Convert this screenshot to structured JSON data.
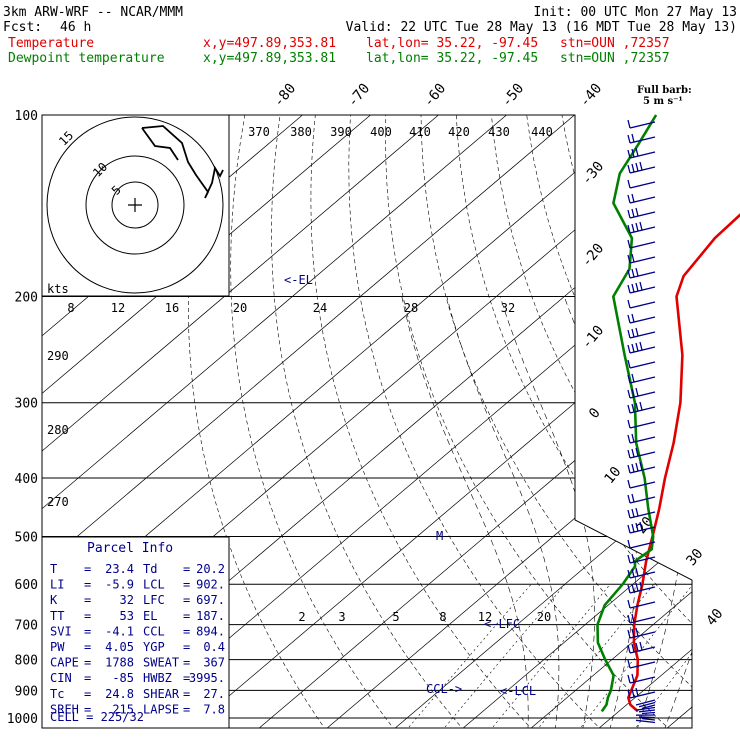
{
  "header": {
    "model": "3km ARW-WRF -- NCAR/MMM",
    "init": "Init: 00 UTC Mon 27 May 13",
    "fcst_label": "Fcst:",
    "fcst_value": "46 h",
    "valid": "Valid: 22 UTC Tue 28 May 13 (16 MDT Tue 28 May 13)",
    "temp_name": "Temperature",
    "dew_name": "Dewpoint temperature",
    "xy": "x,y=497.89,353.81",
    "latlon": "lat,lon= 35.22, -97.45",
    "stn": "stn=OUN ,72357"
  },
  "barb_legend": {
    "title": "Full barb:",
    "value": "5 m s⁻¹"
  },
  "hodograph": {
    "units": "kts",
    "rings": [
      "5",
      "10",
      "15"
    ],
    "speed_ticks": [
      "8",
      "12",
      "16",
      "20",
      "24",
      "28",
      "32"
    ],
    "theta_labels": [
      "370",
      "380",
      "390",
      "400",
      "410",
      "420",
      "430",
      "440"
    ]
  },
  "skewt": {
    "pressure_labels": [
      "100",
      "200",
      "300",
      "400",
      "500",
      "600",
      "700",
      "800",
      "900",
      "1000"
    ],
    "temp_labels": [
      "-80",
      "-70",
      "-60",
      "-50",
      "-40",
      "-30",
      "-20",
      "-10",
      "0",
      "10",
      "20",
      "30",
      "40"
    ],
    "theta_e_labels": [
      "290",
      "280",
      "270"
    ],
    "mixing_ratio_labels": [
      "2",
      "3",
      "5",
      "8",
      "12",
      "20"
    ],
    "level_marks": {
      "el": "<-EL",
      "lfc": "<-LFC",
      "ccl": "CCL->",
      "lcl": "<-LCL",
      "m": "M"
    }
  },
  "parcel_info": {
    "title": "Parcel Info",
    "rows": [
      [
        "T",
        "=",
        "23.4",
        "Td",
        "=",
        "20.2"
      ],
      [
        "LI",
        "=",
        "-5.9",
        "LCL",
        "=",
        "902."
      ],
      [
        "K",
        "=",
        "32",
        "LFC",
        "=",
        "697."
      ],
      [
        "TT",
        "=",
        "53",
        "EL",
        "=",
        "187."
      ],
      [
        "SVI",
        "=",
        "-4.1",
        "CCL",
        "=",
        "894."
      ],
      [
        "PW",
        "=",
        "4.05",
        "YGP",
        "=",
        "0.4"
      ],
      [
        "CAPE",
        "=",
        "1788",
        "SWEAT",
        "=",
        "367"
      ],
      [
        "CIN",
        "=",
        "-85",
        "HWBZ",
        "=",
        "3995."
      ],
      [
        "Tc",
        "=",
        "24.8",
        "SHEAR",
        "=",
        "27."
      ],
      [
        "SREH",
        "=",
        "215",
        "LAPSE",
        "=",
        "7.8"
      ]
    ],
    "cell": "CELL = 225/32"
  },
  "colors": {
    "temperature": "#e00000",
    "dewpoint": "#008000",
    "annot": "#00008b",
    "barb": "#00008b"
  },
  "chart_data": {
    "type": "line",
    "pressure_levels": [
      1000,
      900,
      800,
      700,
      600,
      500,
      400,
      300,
      200,
      100
    ],
    "series": [
      {
        "name": "Temperature",
        "points": [
          [
            975,
            22.8
          ],
          [
            950,
            20.5
          ],
          [
            925,
            19.0
          ],
          [
            900,
            18.2
          ],
          [
            850,
            16.5
          ],
          [
            800,
            13.8
          ],
          [
            750,
            10.3
          ],
          [
            700,
            7.2
          ],
          [
            650,
            4.3
          ],
          [
            600,
            1.4
          ],
          [
            550,
            -2.0
          ],
          [
            500,
            -5.4
          ],
          [
            450,
            -9.2
          ],
          [
            400,
            -13.7
          ],
          [
            350,
            -18.5
          ],
          [
            300,
            -24.5
          ],
          [
            250,
            -32.5
          ],
          [
            200,
            -43.5
          ],
          [
            185,
            -46.0
          ],
          [
            160,
            -48.0
          ],
          [
            140,
            -48.5
          ],
          [
            125,
            -50.5
          ],
          [
            112,
            -50.3
          ],
          [
            100,
            -50.0
          ]
        ]
      },
      {
        "name": "Dewpoint temperature",
        "points": [
          [
            975,
            17.5
          ],
          [
            950,
            17.0
          ],
          [
            925,
            16.0
          ],
          [
            900,
            15.2
          ],
          [
            850,
            13.0
          ],
          [
            800,
            9.0
          ],
          [
            750,
            5.0
          ],
          [
            700,
            1.8
          ],
          [
            650,
            -0.5
          ],
          [
            600,
            -1.5
          ],
          [
            560,
            -2.8
          ],
          [
            550,
            -3.7
          ],
          [
            525,
            -3.3
          ],
          [
            500,
            -5.3
          ],
          [
            450,
            -10.8
          ],
          [
            400,
            -16.7
          ],
          [
            350,
            -24.0
          ],
          [
            300,
            -31.2
          ],
          [
            250,
            -41.0
          ],
          [
            200,
            -52.8
          ],
          [
            180,
            -55.2
          ],
          [
            160,
            -60.2
          ],
          [
            140,
            -69.0
          ],
          [
            125,
            -73.2
          ],
          [
            112,
            -75.5
          ],
          [
            100,
            -78.0
          ]
        ]
      }
    ]
  }
}
